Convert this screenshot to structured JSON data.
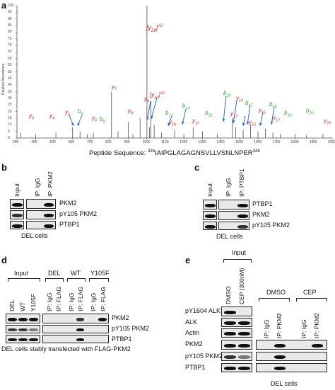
{
  "panel_a": {
    "letter": "a",
    "ylabel": "Relative Abundance",
    "xlabel_prefix": "Peptide Sequence: ",
    "seq_start": "326",
    "seq": "IAIPGLAGAGNSVLLVSNLNPER",
    "seq_end": "348",
    "x_ticks": [
      "300",
      "400",
      "500",
      "600",
      "700",
      "800",
      "900",
      "1000",
      "1100",
      "1200",
      "1300",
      "1400",
      "1500",
      "1600",
      "1700",
      "1800",
      "1900",
      "2000"
    ],
    "y_ticks": [
      "0",
      "5",
      "10",
      "15",
      "20",
      "25",
      "30",
      "35",
      "40",
      "45",
      "50",
      "55",
      "60",
      "65",
      "70",
      "75",
      "80",
      "85",
      "90",
      "95",
      "100"
    ],
    "top_label": "[y20]+2",
    "ions_red": [
      "y3",
      "y4",
      "y5",
      "y6",
      "y7",
      "y8",
      "y9",
      "y10",
      "y11",
      "y13",
      "y14",
      "y15",
      "y16",
      "y17",
      "y20",
      "[y20]+2"
    ],
    "ions_green": [
      "b9",
      "b9",
      "b13",
      "b14",
      "b15",
      "b16",
      "b17",
      "b18",
      "b19",
      "b20"
    ]
  },
  "panel_b": {
    "letter": "b",
    "columns": [
      "Input",
      "IP: IgG",
      "IP: PKM2"
    ],
    "rows": [
      "PKM2",
      "pY105 PKM2",
      "PTBP1"
    ],
    "caption": "DEL cells"
  },
  "panel_c": {
    "letter": "c",
    "columns": [
      "Input",
      "IP: IgG",
      "IP: PTBP1"
    ],
    "rows": [
      "PTBP1",
      "PKM2",
      "pY105 PKM2"
    ],
    "caption": "DEL cells"
  },
  "panel_d": {
    "letter": "d",
    "input_header": "Input",
    "input_columns": [
      "DEL",
      "WT",
      "Y105F"
    ],
    "groups": [
      "DEL",
      "WT",
      "Y105F"
    ],
    "ip_columns": [
      "IP: IgG",
      "IP: FLAG",
      "IP: IgG",
      "IP: FLAG",
      "IP: IgG",
      "IP: FLAG"
    ],
    "rows": [
      "PKM2",
      "pY105 PKM2",
      "PTBP1"
    ],
    "caption": "DEL cells stably transfected with FLAG-PKM2"
  },
  "panel_e": {
    "letter": "e",
    "input_header": "Input",
    "input_columns": [
      "DMSO",
      "CEP (300nM)"
    ],
    "groups": [
      "DMSO",
      "CEP"
    ],
    "ip_columns": [
      "IP: IgG",
      "IP: PKM2",
      "IP: IgG",
      "IP: PKM2"
    ],
    "rows": [
      "pY1604 ALK",
      "ALK",
      "Actin",
      "PKM2",
      "pY105 PKM2",
      "PTBP1"
    ],
    "caption": "DEL cells"
  }
}
